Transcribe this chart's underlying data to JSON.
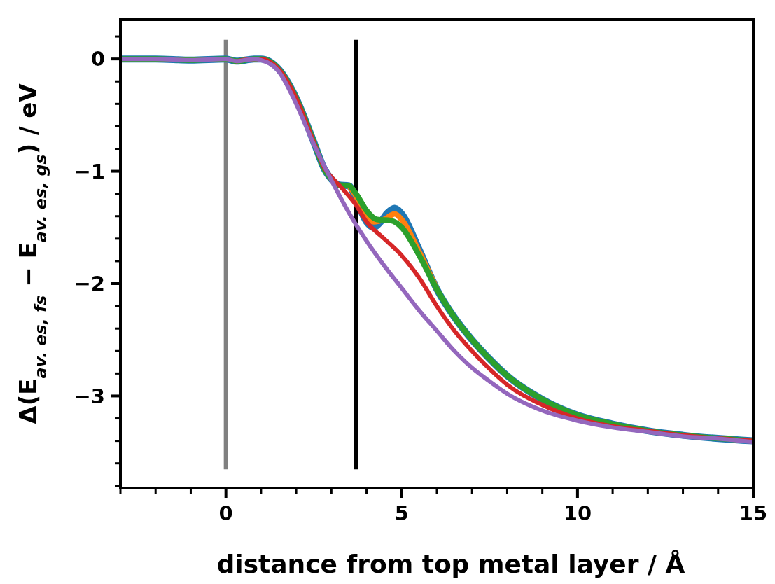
{
  "chart_data": {
    "type": "line",
    "xlabel": "distance from top metal layer / Å",
    "ylabel": "Δ(E$_{av. es, fs}$ − E$_{av. es, gs}$) / eV",
    "xlim": [
      -3,
      15
    ],
    "ylim": [
      -3.82,
      0.35
    ],
    "xticks": [
      {
        "value": -3,
        "label": null
      },
      {
        "value": -2,
        "label": null
      },
      {
        "value": -1,
        "label": null
      },
      0,
      {
        "value": 1,
        "label": null
      },
      {
        "value": 2,
        "label": null
      },
      {
        "value": 3,
        "label": null
      },
      {
        "value": 4,
        "label": null
      },
      5,
      {
        "value": 6,
        "label": null
      },
      {
        "value": 7,
        "label": null
      },
      {
        "value": 8,
        "label": null
      },
      {
        "value": 9,
        "label": null
      },
      10,
      {
        "value": 11,
        "label": null
      },
      {
        "value": 12,
        "label": null
      },
      {
        "value": 13,
        "label": null
      },
      {
        "value": 14,
        "label": null
      },
      15
    ],
    "yticks": [
      {
        "value": 0.2,
        "label": null
      },
      0,
      {
        "value": -0.2,
        "label": null
      },
      {
        "value": -0.4,
        "label": null
      },
      {
        "value": -0.6,
        "label": null
      },
      {
        "value": -0.8,
        "label": null
      },
      -1,
      {
        "value": -1.2,
        "label": null
      },
      {
        "value": -1.4,
        "label": null
      },
      {
        "value": -1.6,
        "label": null
      },
      {
        "value": -1.8,
        "label": null
      },
      -2,
      {
        "value": -2.2,
        "label": null
      },
      {
        "value": -2.4,
        "label": null
      },
      {
        "value": -2.6,
        "label": null
      },
      {
        "value": -2.8,
        "label": null
      },
      -3,
      {
        "value": -3.2,
        "label": null
      },
      {
        "value": -3.4,
        "label": null
      },
      {
        "value": -3.6,
        "label": null
      },
      {
        "value": -3.8,
        "label": null
      }
    ],
    "grid": false,
    "marker": "none",
    "line_style": "solid",
    "ref_lines": [
      {
        "axis": "x",
        "value": 0,
        "label": null,
        "color": "#808080"
      },
      {
        "axis": "x",
        "value": 3.7,
        "label": null,
        "color": "#000000"
      }
    ],
    "series": [
      {
        "color": "#1f77b4",
        "x": [
          -3,
          -2,
          -1,
          0,
          0.3,
          0.8,
          1,
          1.5,
          2,
          2.5,
          2.8,
          3,
          3.2,
          3.5,
          3.7,
          4,
          4.2,
          4.4,
          4.6,
          4.8,
          5,
          5.5,
          6,
          6.5,
          7,
          7.5,
          8,
          9,
          10,
          11,
          12,
          13,
          15
        ],
        "values": [
          0,
          0,
          -0.01,
          0,
          -0.02,
          0,
          0,
          -0.09,
          -0.35,
          -0.74,
          -0.98,
          -1.07,
          -1.12,
          -1.13,
          -1.25,
          -1.45,
          -1.5,
          -1.45,
          -1.37,
          -1.33,
          -1.38,
          -1.7,
          -2.05,
          -2.3,
          -2.5,
          -2.67,
          -2.82,
          -3.03,
          -3.17,
          -3.25,
          -3.31,
          -3.35,
          -3.4
        ]
      },
      {
        "color": "#ff7f0e",
        "x": [
          3.5,
          3.7,
          4,
          4.2,
          4.5,
          4.8,
          5,
          5.5,
          6
        ],
        "values": [
          -1.13,
          -1.22,
          -1.4,
          -1.45,
          -1.43,
          -1.38,
          -1.43,
          -1.72,
          -2.05
        ]
      },
      {
        "color": "#2ca02c",
        "x": [
          -3,
          -2,
          -1,
          0,
          0.3,
          0.8,
          1,
          1.5,
          2,
          2.5,
          2.8,
          3,
          3.2,
          3.5,
          3.7,
          4,
          4.3,
          4.7,
          5,
          5.5,
          6,
          6.5,
          7,
          7.5,
          8,
          9,
          10,
          11,
          12,
          13,
          15
        ],
        "values": [
          0,
          0,
          -0.01,
          0,
          -0.02,
          0,
          0,
          -0.09,
          -0.35,
          -0.74,
          -0.98,
          -1.07,
          -1.12,
          -1.13,
          -1.2,
          -1.35,
          -1.43,
          -1.44,
          -1.5,
          -1.75,
          -2.05,
          -2.3,
          -2.5,
          -2.67,
          -2.82,
          -3.03,
          -3.17,
          -3.25,
          -3.31,
          -3.35,
          -3.4
        ]
      },
      {
        "color": "#d62728",
        "x": [
          0.3,
          0.8,
          1,
          1.5,
          2,
          2.5,
          2.8,
          3,
          3.3,
          3.7,
          4,
          4.5,
          5,
          5.5,
          6,
          6.5,
          7,
          7.5,
          8,
          9,
          10,
          11,
          12,
          13,
          15
        ],
        "values": [
          -0.02,
          0,
          0,
          -0.09,
          -0.35,
          -0.74,
          -0.97,
          -1.05,
          -1.15,
          -1.3,
          -1.45,
          -1.6,
          -1.75,
          -1.95,
          -2.2,
          -2.42,
          -2.6,
          -2.76,
          -2.9,
          -3.08,
          -3.2,
          -3.27,
          -3.31,
          -3.35,
          -3.4
        ]
      },
      {
        "color": "#9467bd",
        "x": [
          -3,
          -2,
          -1,
          0,
          0.3,
          0.8,
          1,
          1.5,
          2,
          2.5,
          3,
          3.5,
          4,
          4.5,
          5,
          5.5,
          6,
          6.5,
          7,
          7.5,
          8,
          9,
          10,
          11,
          12,
          13,
          14,
          15
        ],
        "values": [
          0,
          0,
          -0.01,
          0,
          -0.02,
          0,
          -0.01,
          -0.11,
          -0.4,
          -0.76,
          -1.08,
          -1.37,
          -1.62,
          -1.84,
          -2.04,
          -2.24,
          -2.42,
          -2.6,
          -2.75,
          -2.87,
          -2.98,
          -3.13,
          -3.22,
          -3.28,
          -3.32,
          -3.36,
          -3.38,
          -3.41
        ]
      }
    ]
  }
}
